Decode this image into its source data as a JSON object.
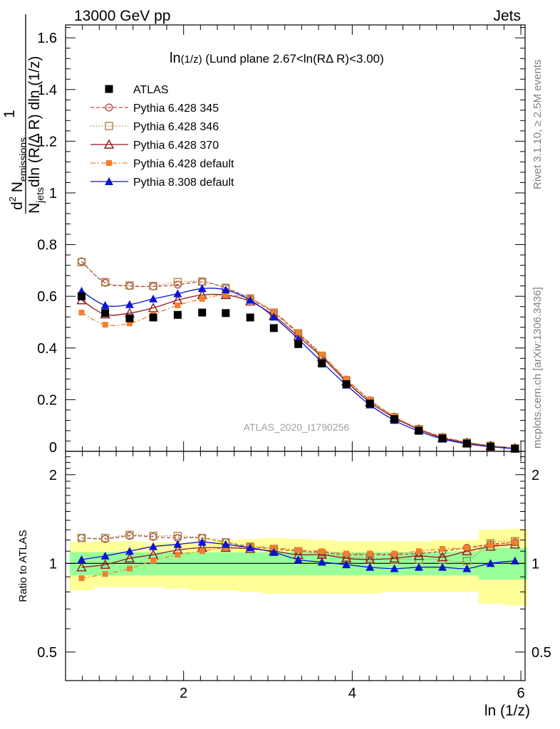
{
  "header": {
    "left": "13000 GeV pp",
    "right": "Jets"
  },
  "plot_title": {
    "main": "ln",
    "sub": "(1/z)",
    "rest": " (Lund plane 2.67<ln(RΔ R)<3.00)"
  },
  "watermark": "ATLAS_2020_I1790256",
  "side_labels": {
    "rivet": "Rivet 3.1.10, ≥ 2.5M events",
    "mcplots": "mcplots.cern.ch [arXiv:1306.3436]"
  },
  "ylabel_main": {
    "one": "1",
    "njets": "N",
    "njets_sub": "jets",
    "den_rest": "dln (R/Δ R) dln (1/z)",
    "num_d2": "d",
    "num_sup": "2",
    "num_n": " N",
    "num_sub": "emissions"
  },
  "ylabel_ratio": "Ratio to ATLAS",
  "xlabel": "ln (1/z)",
  "ticks": {
    "main_y": [
      "0",
      "0.2",
      "0.4",
      "0.6",
      "0.8",
      "1",
      "1.2",
      "1.4",
      "1.6"
    ],
    "ratio_y": [
      "0.5",
      "1",
      "2"
    ],
    "x": [
      "2",
      "4",
      "6"
    ]
  },
  "colors": {
    "atlas": "#000000",
    "p345": "#b8434a",
    "p346": "#a8893c",
    "p370": "#8c1a1f",
    "p6def": "#f07f2e",
    "p8def": "#0a14d2",
    "band_inner": "#99ff99",
    "band_outer": "#ffff99"
  },
  "chart_data": [
    {
      "type": "scatter",
      "panel": "main",
      "x": [
        0.79,
        1.07,
        1.36,
        1.64,
        1.93,
        2.22,
        2.5,
        2.79,
        3.07,
        3.36,
        3.64,
        3.93,
        4.21,
        4.5,
        4.79,
        5.07,
        5.36,
        5.64,
        5.93
      ],
      "xlim": [
        0.6,
        6.05
      ],
      "ylim": [
        0,
        1.65
      ],
      "logy": false,
      "series": [
        {
          "name": "ATLAS",
          "key": "atlas",
          "marker": "square-filled",
          "line": "none",
          "values": [
            0.6,
            0.535,
            0.515,
            0.518,
            0.528,
            0.537,
            0.535,
            0.518,
            0.477,
            0.415,
            0.34,
            0.26,
            0.185,
            0.125,
            0.08,
            0.05,
            0.03,
            0.018,
            0.01
          ]
        },
        {
          "name": "Pythia 6.428 345",
          "key": "p345",
          "marker": "circle-open",
          "line": "dashed",
          "values": [
            0.735,
            0.652,
            0.64,
            0.638,
            0.645,
            0.655,
            0.632,
            0.59,
            0.535,
            0.455,
            0.37,
            0.278,
            0.198,
            0.134,
            0.087,
            0.055,
            0.034,
            0.021,
            0.012
          ]
        },
        {
          "name": "Pythia 6.428 346",
          "key": "p346",
          "marker": "square-open",
          "line": "dotted",
          "values": [
            0.732,
            0.655,
            0.642,
            0.64,
            0.655,
            0.657,
            0.633,
            0.592,
            0.537,
            0.457,
            0.37,
            0.275,
            0.195,
            0.132,
            0.086,
            0.054,
            0.034,
            0.022,
            0.012
          ]
        },
        {
          "name": "Pythia 6.428 370",
          "key": "p370",
          "marker": "triangle-open",
          "line": "solid",
          "values": [
            0.585,
            0.53,
            0.535,
            0.555,
            0.585,
            0.605,
            0.605,
            0.58,
            0.525,
            0.445,
            0.365,
            0.27,
            0.19,
            0.13,
            0.085,
            0.052,
            0.033,
            0.021,
            0.012
          ]
        },
        {
          "name": "Pythia 6.428 default",
          "key": "p6def",
          "marker": "square-filled-small",
          "line": "dashdot",
          "values": [
            0.537,
            0.49,
            0.495,
            0.53,
            0.565,
            0.59,
            0.605,
            0.59,
            0.54,
            0.46,
            0.375,
            0.28,
            0.2,
            0.135,
            0.088,
            0.057,
            0.036,
            0.022,
            0.013
          ]
        },
        {
          "name": "Pythia 8.308 default",
          "key": "p8def",
          "marker": "triangle-filled",
          "line": "solid",
          "values": [
            0.62,
            0.565,
            0.568,
            0.59,
            0.61,
            0.63,
            0.625,
            0.585,
            0.52,
            0.435,
            0.345,
            0.257,
            0.18,
            0.12,
            0.078,
            0.048,
            0.029,
            0.018,
            0.01
          ]
        }
      ]
    },
    {
      "type": "scatter",
      "panel": "ratio",
      "x": [
        0.79,
        1.07,
        1.36,
        1.64,
        1.93,
        2.22,
        2.5,
        2.79,
        3.07,
        3.36,
        3.64,
        3.93,
        4.21,
        4.5,
        4.79,
        5.07,
        5.36,
        5.64,
        5.93
      ],
      "xlim": [
        0.6,
        6.05
      ],
      "ylim": [
        0.4,
        2.4
      ],
      "logy": true,
      "reference": 1,
      "band_inner": {
        "lo": [
          0.91,
          0.91,
          0.91,
          0.91,
          0.91,
          0.91,
          0.91,
          0.91,
          0.91,
          0.91,
          0.91,
          0.91,
          0.91,
          0.91,
          0.91,
          0.91,
          0.91,
          0.88,
          0.88
        ],
        "hi": [
          1.09,
          1.09,
          1.09,
          1.09,
          1.09,
          1.09,
          1.09,
          1.09,
          1.09,
          1.09,
          1.09,
          1.09,
          1.09,
          1.09,
          1.09,
          1.09,
          1.1,
          1.13,
          1.13
        ]
      },
      "band_outer": {
        "lo": [
          0.81,
          0.83,
          0.83,
          0.83,
          0.82,
          0.81,
          0.81,
          0.8,
          0.79,
          0.79,
          0.79,
          0.79,
          0.79,
          0.8,
          0.8,
          0.8,
          0.8,
          0.73,
          0.72
        ],
        "hi": [
          1.18,
          1.19,
          1.19,
          1.18,
          1.18,
          1.19,
          1.2,
          1.21,
          1.22,
          1.21,
          1.2,
          1.19,
          1.19,
          1.19,
          1.19,
          1.2,
          1.2,
          1.3,
          1.31
        ]
      },
      "series": [
        {
          "name": "Pythia 6.428 345",
          "key": "p345",
          "marker": "circle-open",
          "line": "dashed",
          "values": [
            1.22,
            1.21,
            1.24,
            1.23,
            1.22,
            1.22,
            1.18,
            1.14,
            1.12,
            1.1,
            1.09,
            1.07,
            1.07,
            1.07,
            1.08,
            1.1,
            1.13,
            1.16,
            1.18
          ]
        },
        {
          "name": "Pythia 6.428 346",
          "key": "p346",
          "marker": "square-open",
          "line": "dotted",
          "values": [
            1.22,
            1.22,
            1.25,
            1.24,
            1.24,
            1.22,
            1.18,
            1.14,
            1.12,
            1.1,
            1.08,
            1.05,
            1.04,
            1.03,
            1.03,
            1.03,
            1.02,
            1.17,
            1.19
          ]
        },
        {
          "name": "Pythia 6.428 370",
          "key": "p370",
          "marker": "triangle-open",
          "line": "solid",
          "values": [
            0.97,
            0.99,
            1.04,
            1.07,
            1.11,
            1.13,
            1.13,
            1.12,
            1.1,
            1.07,
            1.07,
            1.04,
            1.03,
            1.04,
            1.06,
            1.05,
            1.1,
            1.14,
            1.16
          ]
        },
        {
          "name": "Pythia 6.428 default",
          "key": "p6def",
          "marker": "square-filled-small",
          "line": "dashdot",
          "values": [
            0.89,
            0.92,
            0.96,
            1.02,
            1.07,
            1.1,
            1.13,
            1.14,
            1.13,
            1.11,
            1.1,
            1.08,
            1.08,
            1.08,
            1.1,
            1.12,
            1.13,
            1.15,
            1.18
          ]
        },
        {
          "name": "Pythia 8.308 default",
          "key": "p8def",
          "marker": "triangle-filled",
          "line": "solid",
          "values": [
            1.03,
            1.06,
            1.1,
            1.14,
            1.16,
            1.18,
            1.16,
            1.13,
            1.09,
            1.03,
            1.01,
            0.99,
            0.97,
            0.96,
            0.97,
            0.97,
            0.96,
            1.0,
            1.02
          ]
        }
      ]
    }
  ]
}
